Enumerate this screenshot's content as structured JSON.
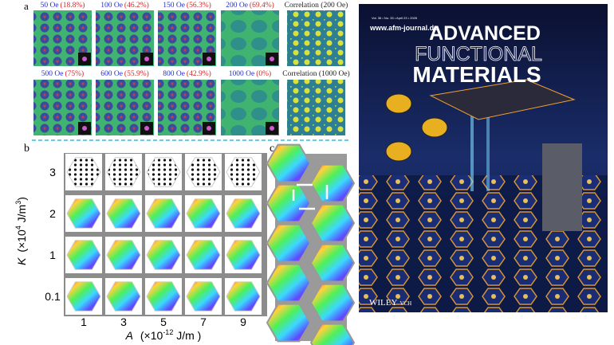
{
  "panel_a": {
    "label": "a",
    "images": [
      {
        "field": "50 Oe",
        "fraction": "(18.8%)"
      },
      {
        "field": "100 Oe",
        "fraction": "(46.2%)"
      },
      {
        "field": "150 Oe",
        "fraction": "(56.3%)"
      },
      {
        "field": "200 Oe",
        "fraction": "(69.4%)"
      },
      {
        "field": "Correlation (200 Oe)"
      },
      {
        "field": "500 Oe",
        "fraction": "(75%)"
      },
      {
        "field": "600 Oe",
        "fraction": "(55.9%)"
      },
      {
        "field": "800 Oe",
        "fraction": "(42.9%)"
      },
      {
        "field": "1000 Oe",
        "fraction": "(0%)"
      },
      {
        "field": "Correlation (1000 Oe)"
      }
    ]
  },
  "panel_b": {
    "label": "b",
    "y_ticks": [
      "3",
      "2",
      "1",
      "0.1"
    ],
    "x_ticks": [
      "1",
      "3",
      "5",
      "7",
      "9"
    ],
    "y_label": {
      "symbol": "K",
      "unit": "(×10",
      "exp": "4",
      "unit2": " J/m",
      "exp2": "3",
      "close": ")"
    },
    "x_label": {
      "symbol": "A",
      "unit": "(×10",
      "exp": "-12",
      "unit2": " J/m )"
    }
  },
  "panel_c": {
    "label": "c"
  },
  "cover": {
    "url": "www.afm-journal.de",
    "issue": "Vol. 36 • No. 33 • April 23 • 2026",
    "title": [
      "ADVANCED",
      "FUNCTIONAL",
      "MATERIALS"
    ],
    "publisher": "WILEY",
    "publisher2": "VCH"
  }
}
